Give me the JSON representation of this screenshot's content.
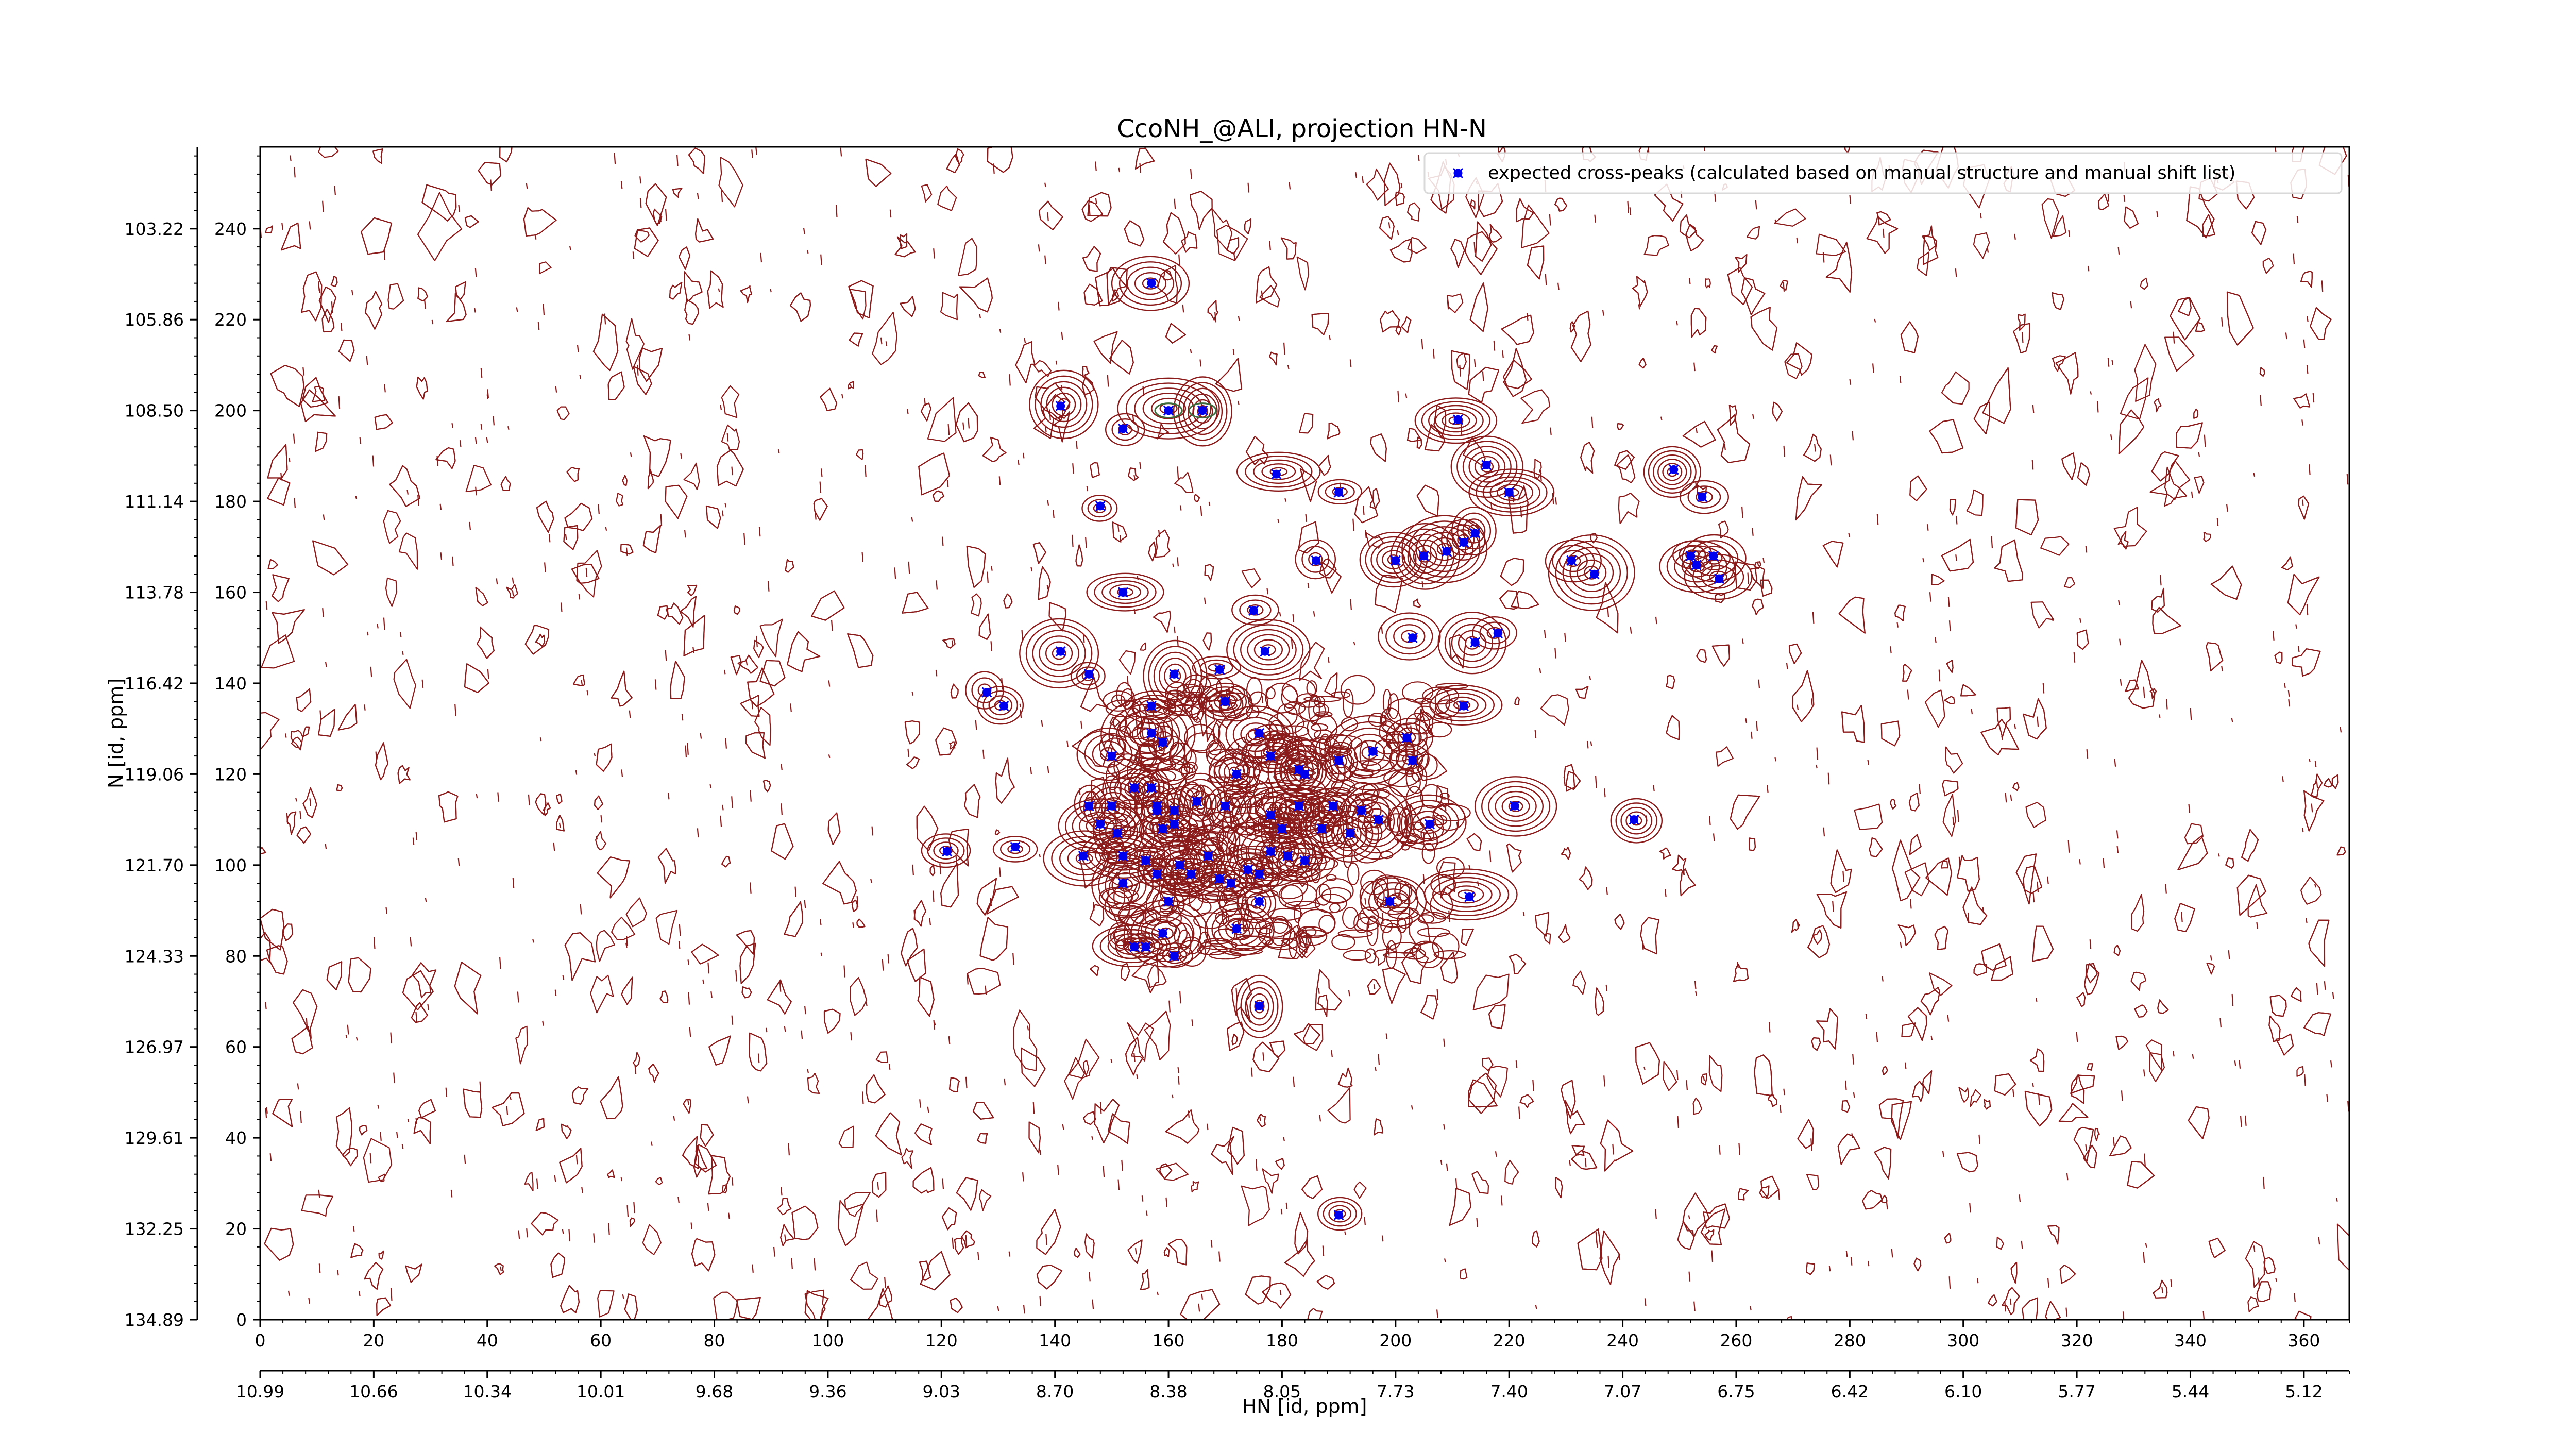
{
  "chart_data": {
    "type": "scatter",
    "title": "CcoNH_@ALI, projection HN-N",
    "xlabel": "HN [id, ppm]",
    "ylabel": "N [id, ppm]",
    "xlim": [
      0,
      368
    ],
    "ylim": [
      0,
      258
    ],
    "grid": false,
    "legend": {
      "position": "top-right",
      "entries": [
        {
          "label": "expected cross-peaks (calculated based on manual structure and manual shift list)",
          "color": "#0000ee",
          "marker": "x"
        }
      ]
    },
    "x_ticks_index": [
      "0",
      "20",
      "40",
      "60",
      "80",
      "100",
      "120",
      "140",
      "160",
      "180",
      "200",
      "220",
      "240",
      "260",
      "280",
      "300",
      "320",
      "340",
      "360"
    ],
    "x_ticks_ppm": [
      "10.99",
      "10.66",
      "10.34",
      "10.01",
      "9.68",
      "9.36",
      "9.03",
      "8.70",
      "8.38",
      "8.05",
      "7.73",
      "7.40",
      "7.07",
      "6.75",
      "6.42",
      "6.10",
      "5.77",
      "5.44",
      "5.12"
    ],
    "y_ticks_index": [
      "0",
      "20",
      "40",
      "60",
      "80",
      "100",
      "120",
      "140",
      "160",
      "180",
      "200",
      "220",
      "240"
    ],
    "y_ticks_ppm": [
      "134.89",
      "132.25",
      "129.61",
      "126.97",
      "124.33",
      "121.70",
      "119.06",
      "116.42",
      "113.78",
      "111.14",
      "108.50",
      "105.86",
      "103.22"
    ],
    "colors": {
      "contour": "#8b1a1a",
      "peak": "#0000ee",
      "contour_alt": "#3d6b3d"
    },
    "series": [
      {
        "name": "expected cross-peaks (calculated based on manual structure and manual shift list)",
        "points": [
          [
            157,
            228
          ],
          [
            141,
            201
          ],
          [
            160,
            200
          ],
          [
            166,
            200
          ],
          [
            152,
            196
          ],
          [
            211,
            198
          ],
          [
            179,
            186
          ],
          [
            190,
            182
          ],
          [
            148,
            179
          ],
          [
            216,
            188
          ],
          [
            220,
            182
          ],
          [
            249,
            187
          ],
          [
            254,
            181
          ],
          [
            200,
            167
          ],
          [
            186,
            167
          ],
          [
            205,
            168
          ],
          [
            209,
            169
          ],
          [
            212,
            171
          ],
          [
            214,
            173
          ],
          [
            231,
            167
          ],
          [
            235,
            164
          ],
          [
            252,
            168
          ],
          [
            256,
            168
          ],
          [
            253,
            166
          ],
          [
            257,
            163
          ],
          [
            152,
            160
          ],
          [
            175,
            156
          ],
          [
            214,
            149
          ],
          [
            203,
            150
          ],
          [
            218,
            151
          ],
          [
            177,
            147
          ],
          [
            141,
            147
          ],
          [
            146,
            142
          ],
          [
            161,
            142
          ],
          [
            169,
            143
          ],
          [
            128,
            138
          ],
          [
            131,
            135
          ],
          [
            157,
            135
          ],
          [
            170,
            136
          ],
          [
            157,
            129
          ],
          [
            176,
            129
          ],
          [
            202,
            128
          ],
          [
            212,
            135
          ],
          [
            159,
            127
          ],
          [
            150,
            124
          ],
          [
            190,
            123
          ],
          [
            196,
            125
          ],
          [
            203,
            123
          ],
          [
            178,
            124
          ],
          [
            172,
            120
          ],
          [
            183,
            121
          ],
          [
            184,
            120
          ],
          [
            154,
            117
          ],
          [
            157,
            117
          ],
          [
            150,
            113
          ],
          [
            158,
            113
          ],
          [
            146,
            113
          ],
          [
            158,
            112
          ],
          [
            161,
            112
          ],
          [
            165,
            114
          ],
          [
            170,
            113
          ],
          [
            178,
            111
          ],
          [
            183,
            113
          ],
          [
            189,
            113
          ],
          [
            194,
            112
          ],
          [
            197,
            110
          ],
          [
            206,
            109
          ],
          [
            221,
            113
          ],
          [
            242,
            110
          ],
          [
            148,
            109
          ],
          [
            151,
            107
          ],
          [
            159,
            108
          ],
          [
            161,
            109
          ],
          [
            180,
            108
          ],
          [
            187,
            108
          ],
          [
            192,
            107
          ],
          [
            121,
            103
          ],
          [
            133,
            104
          ],
          [
            145,
            102
          ],
          [
            152,
            102
          ],
          [
            156,
            101
          ],
          [
            162,
            100
          ],
          [
            167,
            102
          ],
          [
            178,
            103
          ],
          [
            181,
            102
          ],
          [
            184,
            101
          ],
          [
            176,
            98
          ],
          [
            158,
            98
          ],
          [
            164,
            98
          ],
          [
            169,
            97
          ],
          [
            174,
            99
          ],
          [
            152,
            96
          ],
          [
            171,
            96
          ],
          [
            176,
            92
          ],
          [
            199,
            92
          ],
          [
            213,
            93
          ],
          [
            160,
            92
          ],
          [
            159,
            85
          ],
          [
            161,
            80
          ],
          [
            154,
            82
          ],
          [
            156,
            82
          ],
          [
            172,
            86
          ],
          [
            176,
            69
          ],
          [
            190,
            23
          ]
        ]
      }
    ]
  }
}
